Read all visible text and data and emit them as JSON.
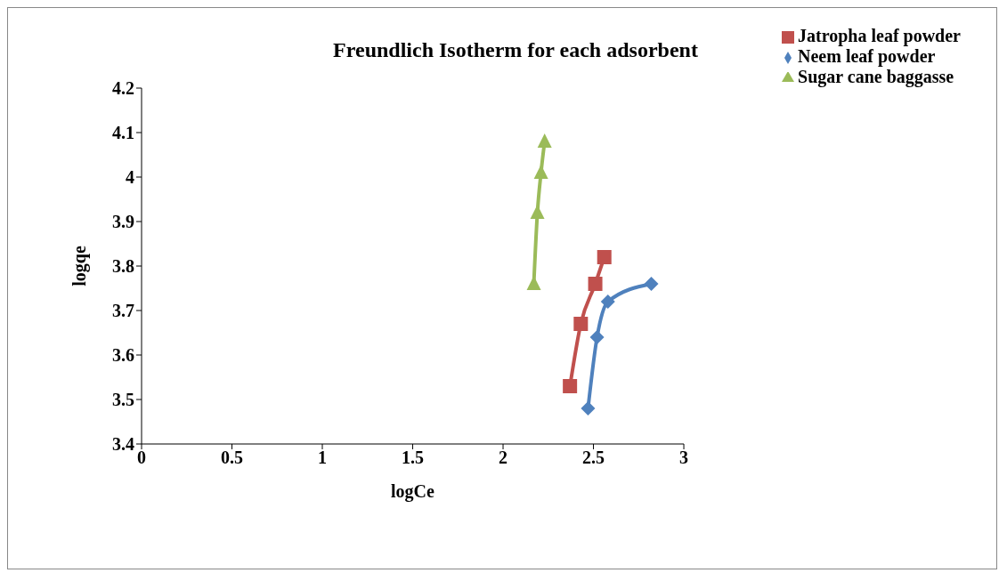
{
  "chart_data": {
    "type": "line",
    "title": "Freundlich Isotherm for each adsorbent",
    "xlabel": "logCe",
    "ylabel": "logqe",
    "xlim": [
      0,
      3
    ],
    "xticks": [
      0,
      0.5,
      1,
      1.5,
      2,
      2.5,
      3
    ],
    "ylim": [
      3.4,
      4.2
    ],
    "yticks": [
      3.4,
      3.5,
      3.6,
      3.7,
      3.8,
      3.9,
      4,
      4.1,
      4.2
    ],
    "grid": false,
    "legend": "top right",
    "series": [
      {
        "name": "Neem leaf powder",
        "color": "#4f81bd",
        "marker": "diamond",
        "x": [
          2.47,
          2.52,
          2.58,
          2.82
        ],
        "values": [
          3.48,
          3.64,
          3.72,
          3.76
        ]
      },
      {
        "name": "Jatropha leaf powder",
        "color": "#c0504d",
        "marker": "square",
        "x": [
          2.37,
          2.43,
          2.51,
          2.56
        ],
        "values": [
          3.53,
          3.67,
          3.76,
          3.82
        ]
      },
      {
        "name": "Sugar cane baggasse",
        "color": "#9bbb59",
        "marker": "triangle",
        "x": [
          2.17,
          2.19,
          2.21,
          2.23
        ],
        "values": [
          3.76,
          3.92,
          4.01,
          4.08
        ]
      }
    ]
  }
}
